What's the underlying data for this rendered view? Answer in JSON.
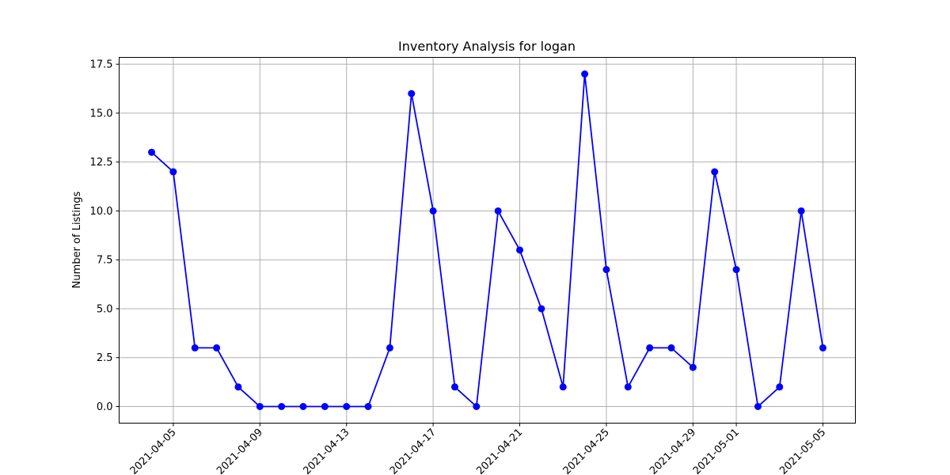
{
  "chart_data": {
    "type": "line",
    "title": "Inventory Analysis for logan",
    "xlabel": "",
    "ylabel": "Number of Listings",
    "x": [
      "2021-04-04",
      "2021-04-05",
      "2021-04-06",
      "2021-04-07",
      "2021-04-08",
      "2021-04-09",
      "2021-04-10",
      "2021-04-11",
      "2021-04-12",
      "2021-04-13",
      "2021-04-14",
      "2021-04-15",
      "2021-04-16",
      "2021-04-17",
      "2021-04-18",
      "2021-04-19",
      "2021-04-20",
      "2021-04-21",
      "2021-04-22",
      "2021-04-23",
      "2021-04-24",
      "2021-04-25",
      "2021-04-26",
      "2021-04-27",
      "2021-04-28",
      "2021-04-29",
      "2021-04-30",
      "2021-05-01",
      "2021-05-02",
      "2021-05-03",
      "2021-05-04",
      "2021-05-05"
    ],
    "series": [
      {
        "values": [
          13,
          12,
          3,
          3,
          1,
          0,
          0,
          0,
          0,
          0,
          0,
          3,
          16,
          10,
          1,
          0,
          10,
          8,
          5,
          1,
          17,
          7,
          1,
          3,
          3,
          2,
          12,
          7,
          0,
          1,
          10,
          3
        ],
        "color": "#0000ff"
      }
    ],
    "xticks": [
      "2021-04-05",
      "2021-04-09",
      "2021-04-13",
      "2021-04-17",
      "2021-04-21",
      "2021-04-25",
      "2021-04-29",
      "2021-05-01",
      "2021-05-05"
    ],
    "yticks": [
      "0.0",
      "2.5",
      "5.0",
      "7.5",
      "10.0",
      "12.5",
      "15.0",
      "17.5"
    ],
    "ylim": [
      -0.85,
      17.85
    ],
    "xlim": [
      "2021-04-02T12:00",
      "2021-05-06T12:00"
    ],
    "grid": true,
    "marker": "circle"
  }
}
